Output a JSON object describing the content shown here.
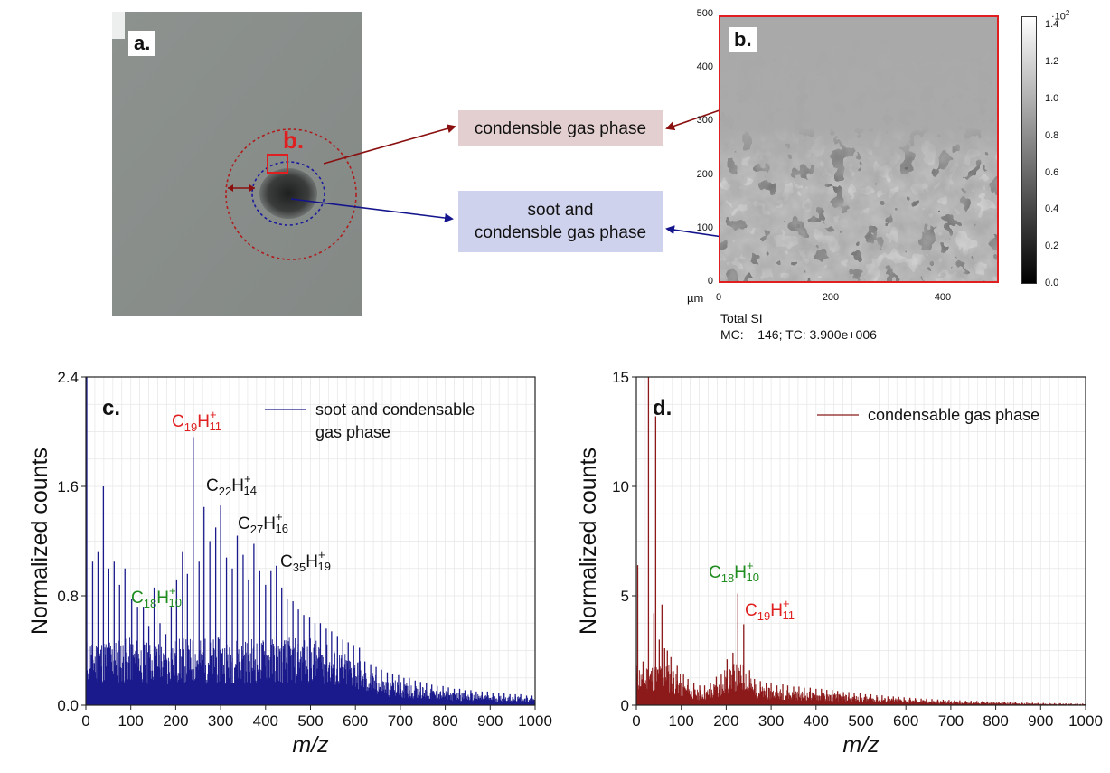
{
  "panel_a": {
    "letter": "a.",
    "inset_letter": "b."
  },
  "callouts": {
    "top": "condensble gas phase",
    "bottom_line1": "soot and",
    "bottom_line2": "condensble gas phase"
  },
  "panel_b": {
    "letter": "b.",
    "y_ticks": [
      "0",
      "100",
      "200",
      "300",
      "400",
      "500"
    ],
    "x_ticks": [
      "0",
      "200",
      "400"
    ],
    "unit": "µm",
    "colorbar_exponent": "10",
    "colorbar_exponent_power": "2",
    "colorbar_ticks": [
      "0.0",
      "0.2",
      "0.4",
      "0.6",
      "0.8",
      "1.0",
      "1.2",
      "1.4"
    ],
    "caption_line1": "Total SI",
    "caption_line2": "MC:    146; TC: 3.900e+006"
  },
  "chart_data": [
    {
      "type": "line",
      "panel": "c.",
      "title": "",
      "xlabel": "m/z",
      "ylabel": "Normalized counts",
      "xlim": [
        0,
        1000
      ],
      "ylim": [
        0,
        2.4
      ],
      "x_ticks": [
        0,
        100,
        200,
        300,
        400,
        500,
        600,
        700,
        800,
        900,
        1000
      ],
      "y_ticks": [
        "0.0",
        "0.8",
        "1.6",
        "2.4"
      ],
      "color": "#1a1a8c",
      "legend": "soot and condensable gas phase",
      "legend_line1": "soot and condensable",
      "legend_line2": "gas phase",
      "legend_position": "top-right",
      "peaks": [
        {
          "x": 2,
          "y": 2.4
        },
        {
          "x": 15,
          "y": 1.05
        },
        {
          "x": 27,
          "y": 1.12
        },
        {
          "x": 39,
          "y": 1.6
        },
        {
          "x": 51,
          "y": 1.0
        },
        {
          "x": 63,
          "y": 1.05
        },
        {
          "x": 75,
          "y": 0.88
        },
        {
          "x": 87,
          "y": 1.0
        },
        {
          "x": 102,
          "y": 0.78
        },
        {
          "x": 115,
          "y": 0.72
        },
        {
          "x": 128,
          "y": 0.72
        },
        {
          "x": 140,
          "y": 0.58
        },
        {
          "x": 152,
          "y": 0.86
        },
        {
          "x": 165,
          "y": 0.6
        },
        {
          "x": 178,
          "y": 0.52
        },
        {
          "x": 190,
          "y": 0.72
        },
        {
          "x": 202,
          "y": 0.92
        },
        {
          "x": 215,
          "y": 1.12
        },
        {
          "x": 226,
          "y": 0.96
        },
        {
          "x": 239,
          "y": 1.96
        },
        {
          "x": 252,
          "y": 1.05
        },
        {
          "x": 263,
          "y": 1.45
        },
        {
          "x": 276,
          "y": 1.2
        },
        {
          "x": 289,
          "y": 1.3
        },
        {
          "x": 300,
          "y": 1.46
        },
        {
          "x": 313,
          "y": 1.08
        },
        {
          "x": 326,
          "y": 1.0
        },
        {
          "x": 337,
          "y": 1.24
        },
        {
          "x": 350,
          "y": 1.1
        },
        {
          "x": 362,
          "y": 0.92
        },
        {
          "x": 374,
          "y": 1.18
        },
        {
          "x": 387,
          "y": 0.98
        },
        {
          "x": 400,
          "y": 0.88
        },
        {
          "x": 412,
          "y": 0.98
        },
        {
          "x": 424,
          "y": 1.02
        },
        {
          "x": 436,
          "y": 0.86
        },
        {
          "x": 448,
          "y": 0.78
        },
        {
          "x": 461,
          "y": 0.76
        },
        {
          "x": 473,
          "y": 0.7
        },
        {
          "x": 485,
          "y": 0.66
        },
        {
          "x": 498,
          "y": 0.64
        },
        {
          "x": 510,
          "y": 0.6
        },
        {
          "x": 522,
          "y": 0.6
        },
        {
          "x": 535,
          "y": 0.56
        },
        {
          "x": 547,
          "y": 0.54
        },
        {
          "x": 560,
          "y": 0.5
        },
        {
          "x": 572,
          "y": 0.48
        },
        {
          "x": 584,
          "y": 0.46
        },
        {
          "x": 596,
          "y": 0.44
        },
        {
          "x": 609,
          "y": 0.42
        },
        {
          "x": 621,
          "y": 0.32
        },
        {
          "x": 634,
          "y": 0.3
        },
        {
          "x": 646,
          "y": 0.28
        },
        {
          "x": 658,
          "y": 0.26
        },
        {
          "x": 671,
          "y": 0.24
        },
        {
          "x": 683,
          "y": 0.23
        },
        {
          "x": 696,
          "y": 0.22
        },
        {
          "x": 708,
          "y": 0.2
        },
        {
          "x": 720,
          "y": 0.2
        },
        {
          "x": 733,
          "y": 0.18
        },
        {
          "x": 745,
          "y": 0.17
        },
        {
          "x": 758,
          "y": 0.16
        },
        {
          "x": 770,
          "y": 0.15
        },
        {
          "x": 782,
          "y": 0.14
        },
        {
          "x": 795,
          "y": 0.14
        },
        {
          "x": 807,
          "y": 0.13
        },
        {
          "x": 820,
          "y": 0.12
        },
        {
          "x": 832,
          "y": 0.12
        },
        {
          "x": 844,
          "y": 0.11
        },
        {
          "x": 857,
          "y": 0.11
        },
        {
          "x": 869,
          "y": 0.1
        },
        {
          "x": 882,
          "y": 0.1
        },
        {
          "x": 894,
          "y": 0.1
        },
        {
          "x": 906,
          "y": 0.09
        },
        {
          "x": 919,
          "y": 0.09
        },
        {
          "x": 931,
          "y": 0.09
        },
        {
          "x": 944,
          "y": 0.08
        },
        {
          "x": 956,
          "y": 0.08
        },
        {
          "x": 968,
          "y": 0.08
        },
        {
          "x": 981,
          "y": 0.07
        },
        {
          "x": 993,
          "y": 0.07
        }
      ],
      "annotations": [
        {
          "main": "C",
          "sub1": "19",
          "mid": "H",
          "sup": "+",
          "sub2": "11",
          "color": "#e02020"
        },
        {
          "main": "C",
          "sub1": "22",
          "mid": "H",
          "sup": "+",
          "sub2": "14",
          "color": "#111111"
        },
        {
          "main": "C",
          "sub1": "27",
          "mid": "H",
          "sup": "+",
          "sub2": "16",
          "color": "#111111"
        },
        {
          "main": "C",
          "sub1": "35",
          "mid": "H",
          "sup": "+",
          "sub2": "19",
          "color": "#111111"
        },
        {
          "main": "C",
          "sub1": "18",
          "mid": "H",
          "sup": "+",
          "sub2": "10",
          "color": "#1e8c1e"
        }
      ]
    },
    {
      "type": "line",
      "panel": "d.",
      "title": "",
      "xlabel": "m/z",
      "ylabel": "Normalized counts",
      "xlim": [
        0,
        1000
      ],
      "ylim": [
        0,
        15
      ],
      "x_ticks": [
        0,
        100,
        200,
        300,
        400,
        500,
        600,
        700,
        800,
        900,
        1000
      ],
      "y_ticks": [
        "0",
        "5",
        "10",
        "15"
      ],
      "color": "#8c1a1a",
      "legend": "condensable gas phase",
      "legend_position": "top-right",
      "peaks": [
        {
          "x": 3,
          "y": 6.4
        },
        {
          "x": 15,
          "y": 2.0
        },
        {
          "x": 27,
          "y": 15.0
        },
        {
          "x": 39,
          "y": 4.2
        },
        {
          "x": 43,
          "y": 13.2
        },
        {
          "x": 51,
          "y": 3.0
        },
        {
          "x": 57,
          "y": 4.6
        },
        {
          "x": 63,
          "y": 2.6
        },
        {
          "x": 69,
          "y": 2.5
        },
        {
          "x": 77,
          "y": 2.2
        },
        {
          "x": 91,
          "y": 1.8
        },
        {
          "x": 105,
          "y": 1.4
        },
        {
          "x": 115,
          "y": 1.2
        },
        {
          "x": 128,
          "y": 1.0
        },
        {
          "x": 141,
          "y": 0.9
        },
        {
          "x": 152,
          "y": 0.9
        },
        {
          "x": 165,
          "y": 1.0
        },
        {
          "x": 178,
          "y": 1.3
        },
        {
          "x": 189,
          "y": 1.4
        },
        {
          "x": 202,
          "y": 2.1
        },
        {
          "x": 215,
          "y": 2.4
        },
        {
          "x": 226,
          "y": 5.1
        },
        {
          "x": 239,
          "y": 3.7
        },
        {
          "x": 252,
          "y": 1.6
        },
        {
          "x": 263,
          "y": 1.2
        },
        {
          "x": 276,
          "y": 1.1
        },
        {
          "x": 289,
          "y": 1.0
        },
        {
          "x": 300,
          "y": 1.0
        },
        {
          "x": 313,
          "y": 0.9
        },
        {
          "x": 326,
          "y": 0.95
        },
        {
          "x": 337,
          "y": 0.9
        },
        {
          "x": 350,
          "y": 0.85
        },
        {
          "x": 362,
          "y": 0.85
        },
        {
          "x": 374,
          "y": 0.8
        },
        {
          "x": 387,
          "y": 0.8
        },
        {
          "x": 400,
          "y": 0.75
        },
        {
          "x": 412,
          "y": 0.75
        },
        {
          "x": 424,
          "y": 0.7
        },
        {
          "x": 436,
          "y": 0.7
        },
        {
          "x": 448,
          "y": 0.65
        },
        {
          "x": 461,
          "y": 0.6
        },
        {
          "x": 473,
          "y": 0.6
        },
        {
          "x": 485,
          "y": 0.55
        },
        {
          "x": 498,
          "y": 0.55
        },
        {
          "x": 510,
          "y": 0.5
        },
        {
          "x": 522,
          "y": 0.5
        },
        {
          "x": 535,
          "y": 0.45
        },
        {
          "x": 547,
          "y": 0.45
        },
        {
          "x": 560,
          "y": 0.4
        },
        {
          "x": 572,
          "y": 0.4
        },
        {
          "x": 584,
          "y": 0.38
        },
        {
          "x": 596,
          "y": 0.36
        },
        {
          "x": 609,
          "y": 0.34
        },
        {
          "x": 621,
          "y": 0.32
        },
        {
          "x": 634,
          "y": 0.3
        },
        {
          "x": 646,
          "y": 0.3
        },
        {
          "x": 658,
          "y": 0.28
        },
        {
          "x": 671,
          "y": 0.26
        },
        {
          "x": 683,
          "y": 0.25
        },
        {
          "x": 696,
          "y": 0.24
        },
        {
          "x": 708,
          "y": 0.22
        },
        {
          "x": 720,
          "y": 0.22
        },
        {
          "x": 733,
          "y": 0.2
        },
        {
          "x": 745,
          "y": 0.2
        },
        {
          "x": 758,
          "y": 0.19
        },
        {
          "x": 770,
          "y": 0.18
        },
        {
          "x": 782,
          "y": 0.17
        },
        {
          "x": 795,
          "y": 0.16
        },
        {
          "x": 807,
          "y": 0.15
        },
        {
          "x": 820,
          "y": 0.15
        },
        {
          "x": 832,
          "y": 0.14
        },
        {
          "x": 844,
          "y": 0.13
        },
        {
          "x": 857,
          "y": 0.12
        },
        {
          "x": 869,
          "y": 0.12
        },
        {
          "x": 882,
          "y": 0.11
        },
        {
          "x": 894,
          "y": 0.1
        },
        {
          "x": 906,
          "y": 0.1
        },
        {
          "x": 919,
          "y": 0.1
        },
        {
          "x": 931,
          "y": 0.09
        },
        {
          "x": 944,
          "y": 0.09
        },
        {
          "x": 956,
          "y": 0.08
        },
        {
          "x": 968,
          "y": 0.08
        },
        {
          "x": 981,
          "y": 0.08
        },
        {
          "x": 993,
          "y": 0.07
        }
      ],
      "annotations": [
        {
          "main": "C",
          "sub1": "18",
          "mid": "H",
          "sup": "+",
          "sub2": "10",
          "color": "#1e8c1e"
        },
        {
          "main": "C",
          "sub1": "19",
          "mid": "H",
          "sup": "+",
          "sub2": "11",
          "color": "#e02020"
        }
      ]
    }
  ]
}
